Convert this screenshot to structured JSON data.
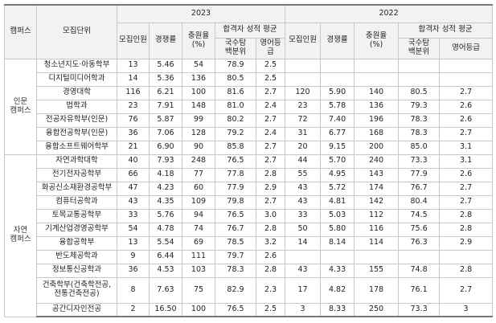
{
  "header": {
    "campus": "캠퍼스",
    "unit": "모집단위",
    "years": [
      "2023",
      "2022"
    ],
    "columns": {
      "quota": "모집인원",
      "competition": "경쟁률",
      "fill_rate": "충원율\n(%)",
      "grade_avg": "합격자 성적 평균",
      "percentile": "국수탐\n백분위",
      "english": "영어등급"
    }
  },
  "campuses": [
    {
      "name": "인문\n캠퍼스",
      "rows": [
        {
          "unit": "청소년지도·아동학부",
          "y2023": [
            "13",
            "5.46",
            "54",
            "78.9",
            "2.5"
          ]
        },
        {
          "unit": "디지털미디어학과",
          "y2023": [
            "14",
            "5.36",
            "136",
            "80.5",
            "2.5"
          ]
        },
        {
          "unit": "경영대학",
          "y2023": [
            "116",
            "6.21",
            "100",
            "81.6",
            "2.7"
          ],
          "y2022": [
            "120",
            "5.90",
            "140",
            "80.5",
            "2.7"
          ]
        },
        {
          "unit": "법학과",
          "y2023": [
            "23",
            "7.91",
            "148",
            "81.0",
            "2.4"
          ],
          "y2022": [
            "23",
            "5.78",
            "136",
            "79.3",
            "2.6"
          ]
        },
        {
          "unit": "전공자유학부(인문)",
          "y2023": [
            "76",
            "5.87",
            "99",
            "80.2",
            "2.7"
          ],
          "y2022": [
            "72",
            "7.40",
            "196",
            "78.3",
            "2.6"
          ]
        },
        {
          "unit": "융합전공학부(인문)",
          "y2023": [
            "36",
            "7.06",
            "128",
            "79.2",
            "2.4"
          ],
          "y2022": [
            "31",
            "6.77",
            "168",
            "78.3",
            "2.7"
          ]
        },
        {
          "unit": "융합소프트웨어학부",
          "y2023": [
            "21",
            "6.90",
            "90",
            "85.8",
            "2.7"
          ],
          "y2022": [
            "20",
            "9.15",
            "200",
            "85.0",
            "3.1"
          ]
        }
      ]
    },
    {
      "name": "자연\n캠퍼스",
      "rows": [
        {
          "unit": "자연과학대학",
          "y2023": [
            "40",
            "7.93",
            "248",
            "76.5",
            "2.7"
          ],
          "y2022": [
            "44",
            "5.70",
            "240",
            "73.3",
            "3.1"
          ]
        },
        {
          "unit": "전기전자공학부",
          "y2023": [
            "66",
            "4.18",
            "77",
            "77.8",
            "2.8"
          ],
          "y2022": [
            "55",
            "4.95",
            "143",
            "77.9",
            "2.6"
          ]
        },
        {
          "unit": "화공신소재환경공학부",
          "y2023": [
            "47",
            "4.23",
            "60",
            "77.9",
            "2.9"
          ],
          "y2022": [
            "43",
            "5.72",
            "174",
            "76.7",
            "2.7"
          ]
        },
        {
          "unit": "컴퓨터공학과",
          "y2023": [
            "43",
            "4.35",
            "109",
            "79.8",
            "2.7"
          ],
          "y2022": [
            "43",
            "4.81",
            "142",
            "80.4",
            "2.7"
          ]
        },
        {
          "unit": "토목교통공학부",
          "y2023": [
            "33",
            "5.76",
            "94",
            "76.5",
            "3.0"
          ],
          "y2022": [
            "33",
            "5.03",
            "112",
            "74.5",
            "2.8"
          ]
        },
        {
          "unit": "기계산업경영공학부",
          "y2023": [
            "54",
            "4.78",
            "74",
            "76.7",
            "2.8"
          ],
          "y2022": [
            "50",
            "5.80",
            "116",
            "75.6",
            "2.8"
          ]
        },
        {
          "unit": "융합공학부",
          "y2023": [
            "13",
            "5.54",
            "69",
            "78.5",
            "3.2"
          ],
          "y2022": [
            "14",
            "8.14",
            "114",
            "76.3",
            "2.9"
          ]
        },
        {
          "unit": "반도체공학과",
          "y2023": [
            "9",
            "6.44",
            "111",
            "79.7",
            "2.6"
          ]
        },
        {
          "unit": "정보통신공학과",
          "y2023": [
            "36",
            "4.53",
            "103",
            "78.3",
            "2.8"
          ],
          "y2022": [
            "43",
            "4.33",
            "155",
            "74.8",
            "2.8"
          ]
        },
        {
          "unit": "건축학부(건축학전공,\n전통건축전공)",
          "y2023": [
            "8",
            "7.63",
            "75",
            "82.9",
            "2.3"
          ],
          "y2022": [
            "17",
            "4.82",
            "178",
            "76.1",
            "2.7"
          ]
        },
        {
          "unit": "공간디자인전공",
          "y2023": [
            "2",
            "16.50",
            "100",
            "76.5",
            "2.5"
          ],
          "y2022": [
            "3",
            "8.33",
            "250",
            "73.3",
            "3"
          ]
        }
      ]
    }
  ]
}
